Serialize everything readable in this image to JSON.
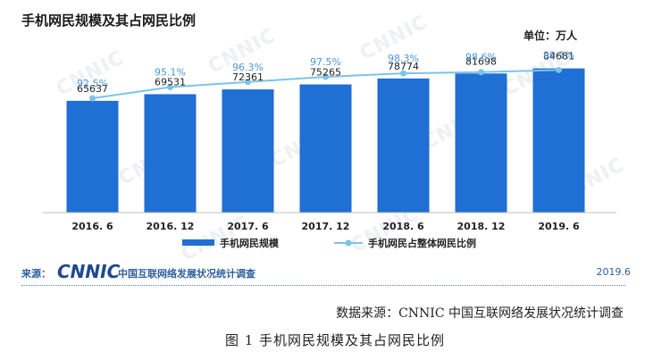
{
  "chart_data": {
    "type": "bar",
    "title": "手机网民规模及其占网民比例",
    "unit": "单位：万人",
    "categories": [
      "2016. 6",
      "2016. 12",
      "2017. 6",
      "2017. 12",
      "2018. 6",
      "2018. 12",
      "2019. 6"
    ],
    "series": [
      {
        "name": "手机网民规模",
        "type": "bar",
        "values": [
          65637,
          69531,
          72361,
          75265,
          78774,
          81698,
          84681
        ],
        "color": "#1f6fd4"
      },
      {
        "name": "手机网民占整体网民比例",
        "type": "line",
        "values": [
          92.5,
          95.1,
          96.3,
          97.5,
          98.3,
          98.6,
          99.1
        ],
        "labels": [
          "92.5%",
          "95.1%",
          "96.3%",
          "97.5%",
          "98.3%",
          "98.6%",
          "99.1%"
        ],
        "color": "#7cc3ea"
      }
    ],
    "legend_position": "bottom",
    "grid": false
  },
  "source": {
    "prefix": "来源：",
    "logo": "CNNIC",
    "org": "中国互联网络发展状况统计调查",
    "date": "2019.6"
  },
  "data_source_note": "数据来源：CNNIC 中国互联网络发展状况统计调查",
  "figure_caption": "图 1  手机网民规模及其占网民比例",
  "watermark_text": "CNNIC",
  "colors": {
    "bar": "#1f6fd4",
    "line": "#7cc3ea",
    "line_label": "#4a97d6",
    "source_text": "#2f5f9f"
  }
}
